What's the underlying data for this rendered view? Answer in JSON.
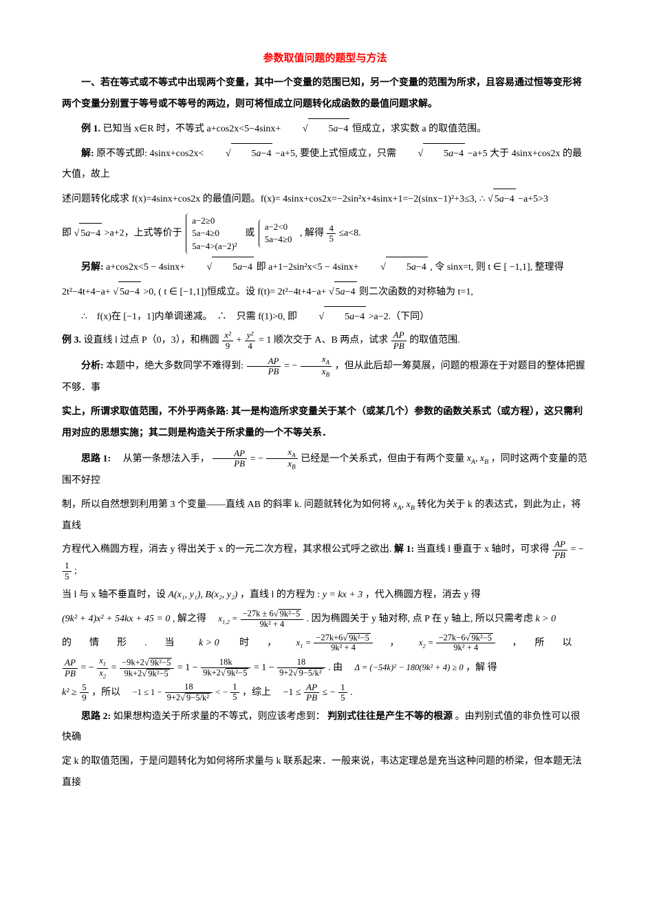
{
  "title": "参数取值问题的题型与方法",
  "section1_heading": "一、若在等式或不等式中出现两个变量，其中一个变量的范围已知，另一个变量的范围为所求，且容易通过恒等变形将两个变量分别置于等号或不等号的两边，则可将恒成立问题转化成函数的最值问题求解。",
  "ex1_label": "例 1.",
  "ex1_body": "已知当 x∈R 时，不等式 a+cos2x<5−4sinx+",
  "ex1_body2": " 恒成立，求实数 a 的取值范围。",
  "ex1_sol_label": "解:",
  "ex1_sol1a": "原不等式即: 4sinx+cos2x<",
  "ex1_sol1b": " −a+5, 要使上式恒成立，只需 ",
  "ex1_sol1c": " −a+5 大于 4sinx+cos2x 的最大值，故上",
  "ex1_sol2": "述问题转化成求 f(x)=4sinx+cos2x 的最值问题。f(x)= 4sinx+cos2x=−2sin²x+4sinx+1=−2(sinx−1)²+3≤3, ∴",
  "ex1_sol2b": " −a+5>3",
  "ex1_sol3a": "即 ",
  "ex1_sol3b": ">a+2，上式等价于 ",
  "ex1_sol3c": " 或 ",
  "ex1_sol3d": ", 解得 ",
  "ex1_sol3e": "≤a<8.",
  "sys1_r1": "a−2≥0",
  "sys1_r2": "5a−4≥0",
  "sys1_r3": "5a−4>(a−2)²",
  "sys2_r1": "a−2<0",
  "sys2_r2": "5a−4≥0",
  "frac45_num": "4",
  "frac45_den": "5",
  "alt_label": "另解:",
  "alt1a": " a+cos2x<5 − 4sinx+",
  "alt1b": " 即  a+1−2sin²x<5 − 4sinx+",
  "alt1c": " , 令  sinx=t, 则  t ∈ [ −1,1], 整理得",
  "alt2a": "2t²−4t+4−a+",
  "alt2b": " >0, ( t ∈ [−1,1])恒成立。设 f(t)= 2t²−4t+4−a+",
  "alt2c": " 则二次函数的对称轴为 t=1,",
  "alt3a": "∴　f(x)在 [−1，1]内单调递减。　∴　只需 f(1)>0, 即 ",
  "alt3b": ">a−2.（下同）",
  "ex3_label": "例 3.",
  "ex3_body1": "设直线 l 过点 P（0，3），和椭圆 ",
  "ex3_body2": " 顺次交于 A、B 两点，试求 ",
  "ex3_body3": " 的取值范围.",
  "ellipse_num1": "x²",
  "ellipse_den1": "9",
  "ellipse_num2": "y²",
  "ellipse_den2": "4",
  "ap_label": "AP",
  "pb_label": "PB",
  "ana_label": "分析:",
  "ana1a": " 本题中，绝大多数同学不难得到: ",
  "ana1b": "，但从此后却一筹莫展，问题的根源在于对题目的整体把握不够．事",
  "ana2": "实上，所谓求取值范围，不外乎两条路: 其一是构造所求变量关于某个（或某几个）参数的函数关系式（或方程），这只需利用对应的思想实施；其二则是构造关于所求量的一个不等关系．",
  "xa": "xA",
  "xb": "xB",
  "idea1_label": "思路 1:",
  "idea1_1a": "　从第一条想法入手，",
  "idea1_1b": " 已经是一个关系式，但由于有两个变量 ",
  "idea1_1c": "，同时这两个变量的范围不好控",
  "idea1_2": "制，所以自然想到利用第 3 个变量——直线 AB 的斜率 k. 问题就转化为如何将 ",
  "idea1_2b": " 转化为关于 k 的表达式，到此为止，将直线",
  "idea1_3a": "方程代入椭圆方程，消去 y 得出关于 x 的一元二次方程，其求根公式呼之欲出.",
  "idea1_3b": "解 1:",
  "idea1_3c": " 当直线 l 垂直于 x 轴时，可求得 ",
  "idea1_3d": ";",
  "idea1_4a": "当 l 与 x 轴不垂直时，设 ",
  "idea1_4b": "，直线 l 的方程为 :  ",
  "idea1_4c": "，代入椭圆方程，消去 y 得",
  "points": "A(x₁, y₁), B(x₂,  y₂)",
  "linek": "y = kx + 3",
  "quad_eq": "(9k² + 4)x² + 54kx + 45 = 0",
  "quad_sol_pre": ", 解之得　",
  "quad_sol_post": ". 因为椭圆关于 y 轴对称, 点 P 在 y 轴上, 所以只需考虑 ",
  "kgt0": "k > 0",
  "x12_label": "x₁,₂ =",
  "x12_num": "−27k ± 6√(9k²−5)",
  "x12_den": "9k² + 4",
  "line_case": "的　情　形　.　当　",
  "line_case2": "　时　，　",
  "line_case3": "　，　",
  "line_case4": "　，　所　以",
  "x1_num": "−27k+6√(9k²−5)",
  "x2_num": "−27k−6√(9k²−5)",
  "ratio_line_a": " = ",
  "ratio_line_b": " = 1 − ",
  "ratio_line_c": " = 1 − ",
  "ratio_line_d": " . 由　",
  "ratio_line_e": "，解 得",
  "delta_expr": "Δ = (−54k)² − 180(9k² + 4) ≥ 0",
  "ratio_num1": "−9k+2√(9k²−5)",
  "ratio_den1": "9k+2√(9k²−5)",
  "ratio_num2": "18k",
  "ratio_den2": "9k+2√(9k²−5)",
  "ratio_num3": "18",
  "ratio_den3": "9+2√(9−5/k²)",
  "k2ge_num": "5",
  "k2ge_den": "9",
  "k2ge_pre": "k² ≥ ",
  "k2ge_post": "，所以　",
  "range_expr": "−1 ≤ 1 − ",
  "range_post": " < −",
  "fifth_num": "1",
  "fifth_den": "5",
  "range_mid": "，综上　",
  "final_range": "−1 ≤ ",
  "final_range2": " ≤ −",
  "idea2_label": "思路 2:",
  "idea2_1": " 如果想构造关于所求量的不等式，则应该考虑到：",
  "idea2_bold": "判别式往往是产生不等的根源",
  "idea2_1b": "。由判别式值的非负性可以很快确",
  "idea2_2": "定 k 的取值范围，于是问题转化为如何将所求量与 k 联系起来．一般来说，韦达定理总是充当这种问题的桥梁，但本题无法直接",
  "colors": {
    "title": "#ff0000",
    "text": "#000000",
    "bg": "#ffffff"
  }
}
